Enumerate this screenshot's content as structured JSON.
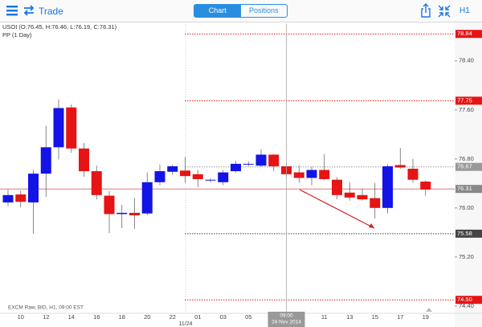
{
  "header": {
    "title": "Trade",
    "tabs": [
      "Chart",
      "Positions"
    ],
    "timeframe": "H1"
  },
  "chart_data": {
    "type": "candlestick",
    "legend": [
      "USOI (O:76.45, H:76.46, L:76.19, C:76.31)",
      "PP (1 Day)"
    ],
    "footer": "EXCM Raw, BID, H1, 09:00 EST",
    "date_label": "11/24",
    "crosshair_time": "09:00",
    "crosshair_date": "24 Nov 2014",
    "categories": [
      null,
      "10",
      null,
      "12",
      null,
      "14",
      null,
      "16",
      null,
      "18",
      null,
      "20",
      null,
      "22",
      null,
      "01",
      null,
      "03",
      null,
      "05",
      null,
      null,
      null,
      null,
      null,
      "11",
      null,
      "13",
      null,
      "15",
      null,
      "17",
      null,
      "19"
    ],
    "open": [
      76.09,
      76.22,
      76.09,
      76.56,
      76.99,
      77.64,
      76.97,
      76.6,
      76.2,
      75.9,
      75.92,
      75.91,
      76.42,
      76.59,
      76.61,
      76.55,
      76.45,
      76.42,
      76.6,
      76.71,
      76.69,
      76.87,
      76.68,
      76.58,
      76.49,
      76.62,
      76.46,
      76.25,
      76.21,
      76.16,
      76.0,
      76.7,
      76.64,
      76.43
    ],
    "high": [
      76.3,
      76.28,
      76.62,
      77.34,
      77.77,
      77.69,
      77.06,
      76.69,
      76.28,
      76.05,
      76.16,
      76.58,
      76.71,
      76.71,
      76.83,
      76.62,
      76.48,
      76.62,
      76.77,
      76.76,
      76.96,
      76.88,
      76.73,
      76.7,
      76.67,
      76.88,
      76.5,
      76.42,
      76.31,
      76.41,
      76.71,
      76.98,
      76.8,
      76.45
    ],
    "low": [
      76.03,
      76.01,
      75.58,
      76.18,
      76.79,
      76.9,
      76.51,
      76.14,
      75.59,
      75.67,
      75.66,
      75.88,
      76.37,
      76.54,
      76.41,
      76.34,
      76.42,
      76.37,
      76.58,
      76.68,
      76.67,
      76.6,
      76.49,
      76.41,
      76.37,
      76.45,
      76.14,
      76.12,
      76.12,
      75.83,
      75.91,
      76.64,
      76.41,
      76.2
    ],
    "close": [
      76.21,
      76.1,
      76.56,
      76.99,
      77.63,
      76.97,
      76.6,
      76.21,
      75.9,
      75.92,
      75.88,
      76.42,
      76.6,
      76.68,
      76.52,
      76.47,
      76.46,
      76.58,
      76.72,
      76.72,
      76.87,
      76.68,
      76.55,
      76.49,
      76.62,
      76.47,
      76.21,
      76.17,
      76.14,
      76.0,
      76.68,
      76.66,
      76.46,
      76.3
    ],
    "up_color": "#1414e6",
    "down_color": "#e61414",
    "ylim": [
      74.28,
      79.0
    ],
    "yticks": [
      {
        "value": 78.4,
        "label": "78.40"
      },
      {
        "value": 77.6,
        "label": "77.60"
      },
      {
        "value": 76.8,
        "label": "76.80"
      },
      {
        "value": 76,
        "label": "76.00"
      },
      {
        "value": 75.2,
        "label": "75.20"
      },
      {
        "value": 74.4,
        "label": "74.40"
      }
    ],
    "pivot_lines": {
      "values": [
        78.84,
        77.75,
        76.67,
        75.58,
        74.5
      ],
      "value_labels": [
        "78.84",
        "77.75",
        "76.67",
        "75.58",
        "74.50"
      ],
      "colors": [
        "#e61414",
        "#e61414",
        "#999999",
        "#444444",
        "#e61414"
      ]
    },
    "current_price": 76.31,
    "current_color": "#e06060"
  }
}
